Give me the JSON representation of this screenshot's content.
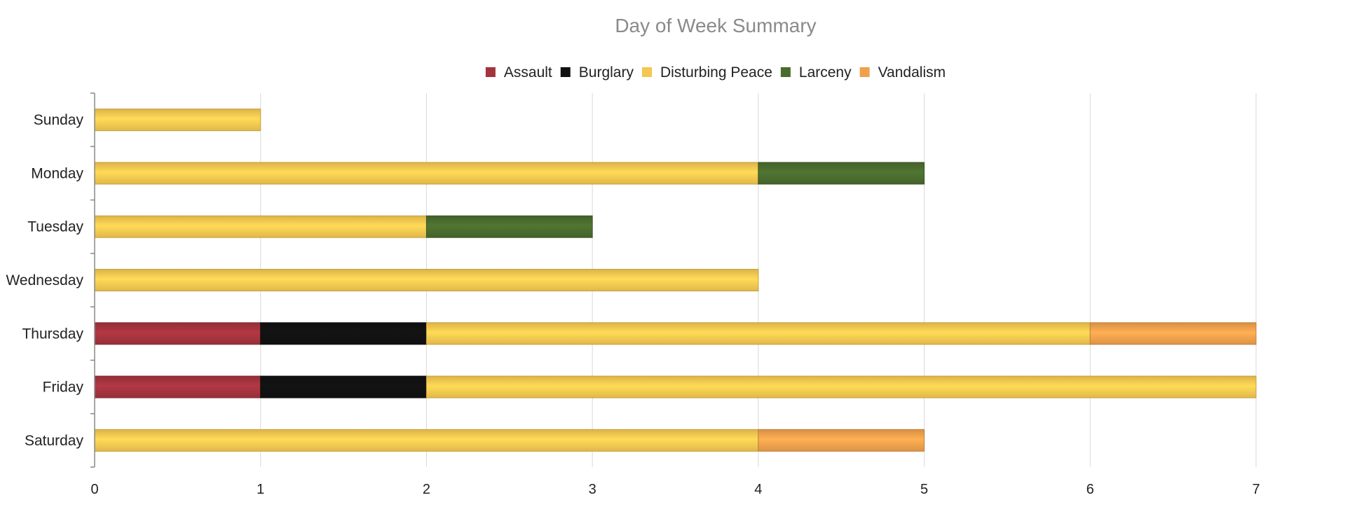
{
  "chart_data": {
    "type": "bar",
    "orientation": "horizontal",
    "stacked": true,
    "title": "Day of Week Summary",
    "xlabel": "",
    "ylabel": "",
    "categories": [
      "Sunday",
      "Monday",
      "Tuesday",
      "Wednesday",
      "Thursday",
      "Friday",
      "Saturday"
    ],
    "series": [
      {
        "name": "Assault",
        "color": "#a3333d",
        "values": [
          0,
          0,
          0,
          0,
          1,
          1,
          0
        ]
      },
      {
        "name": "Burglary",
        "color": "#111111",
        "values": [
          0,
          0,
          0,
          0,
          1,
          1,
          0
        ]
      },
      {
        "name": "Disturbing Peace",
        "color": "#f5c74f",
        "values": [
          1,
          4,
          2,
          4,
          4,
          5,
          4
        ]
      },
      {
        "name": "Larceny",
        "color": "#4a6b2e",
        "values": [
          0,
          1,
          1,
          0,
          0,
          0,
          0
        ]
      },
      {
        "name": "Vandalism",
        "color": "#f0a04b",
        "values": [
          0,
          0,
          0,
          0,
          1,
          0,
          1
        ]
      }
    ],
    "xlim": [
      0,
      7
    ],
    "xticks": [
      0,
      1,
      2,
      3,
      4,
      5,
      6,
      7
    ],
    "grid": true,
    "legend_position": "top-center"
  }
}
